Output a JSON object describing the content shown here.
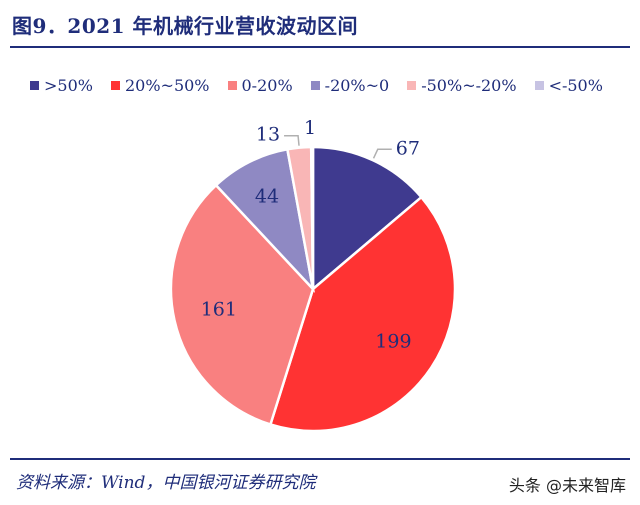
{
  "title": "图9．2021 年机械行业营收波动区间",
  "source": "资料来源：Wind，中国银河证券研究院",
  "watermark": "头条 @未来智库",
  "chart_data": {
    "type": "pie",
    "title": "图9．2021 年机械行业营收波动区间",
    "legend_position": "top",
    "categories": [
      ">50%",
      "20%~50%",
      "0-20%",
      "-20%~0",
      "-50%~-20%",
      "<-50%"
    ],
    "values": [
      67,
      199,
      161,
      44,
      13,
      1
    ],
    "colors": [
      "#3f3a8f",
      "#ff3333",
      "#f98080",
      "#8f89c3",
      "#f9b6b6",
      "#c7c3e3"
    ]
  }
}
